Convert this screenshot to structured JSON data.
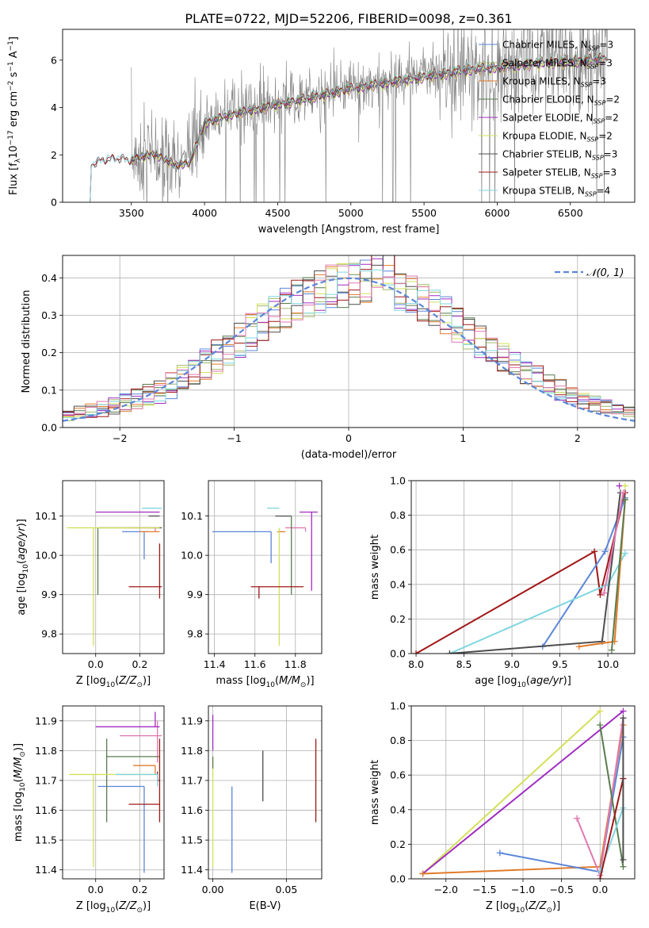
{
  "page_title": "PLATE=0722, MJD=52206, FIBERID=0098, z=0.361",
  "colors": {
    "chabrier_miles": "#5b86d8",
    "salpeter_miles": "#a2b86c",
    "kroupa_miles": "#e07b2a",
    "chabrier_elodie": "#5a7c4e",
    "salpeter_elodie": "#a02cc0",
    "kroupa_elodie": "#d4e05a",
    "chabrier_stelib": "#4d4d4d",
    "salpeter_stelib": "#a01818",
    "kroupa_stelib": "#7fd6e0",
    "pink": "#e079b0",
    "data": "#808080",
    "grid": "#b0b0b0",
    "normal": "#5b86d8"
  },
  "legend_spectrum": [
    {
      "label": "Chabrier MILES, N_SSP=3",
      "color": "#5b86d8"
    },
    {
      "label": "Salpeter MILES, N_SSP=3",
      "color": "#a2b86c"
    },
    {
      "label": "Kroupa MILES, N_SSP=3",
      "color": "#e07b2a"
    },
    {
      "label": "Chabrier ELODIE, N_SSP=2",
      "color": "#5a7c4e"
    },
    {
      "label": "Salpeter ELODIE, N_SSP=2",
      "color": "#a02cc0"
    },
    {
      "label": "Kroupa ELODIE, N_SSP=2",
      "color": "#d4e05a"
    },
    {
      "label": "Chabrier STELIB, N_SSP=3",
      "color": "#4d4d4d"
    },
    {
      "label": "Salpeter STELIB, N_SSP=3",
      "color": "#a01818"
    },
    {
      "label": "Kroupa STELIB, N_SSP=4",
      "color": "#7fd6e0"
    }
  ],
  "chart_data": [
    {
      "type": "line",
      "id": "spectrum",
      "xlabel": "wavelength [Angstrom, rest frame]",
      "ylabel": "Flux [f_λ10^-17 erg cm^-2 s^-1 A^-1]",
      "xlim": [
        3030,
        6940
      ],
      "ylim": [
        0,
        7.3
      ],
      "xticks": [
        3500,
        4000,
        4500,
        5000,
        5500,
        6000,
        6500
      ],
      "yticks": [
        0,
        2,
        4,
        6
      ],
      "continuum": [
        [
          3210,
          1.6
        ],
        [
          3300,
          1.8
        ],
        [
          3400,
          1.9
        ],
        [
          3500,
          1.8
        ],
        [
          3650,
          2.1
        ],
        [
          3800,
          1.6
        ],
        [
          3900,
          1.7
        ],
        [
          4000,
          3.4
        ],
        [
          4200,
          3.8
        ],
        [
          4500,
          4.2
        ],
        [
          4800,
          4.6
        ],
        [
          5000,
          4.9
        ],
        [
          5200,
          5.1
        ],
        [
          5500,
          5.4
        ],
        [
          5800,
          5.7
        ],
        [
          6000,
          5.8
        ],
        [
          6300,
          6.0
        ],
        [
          6600,
          6.1
        ],
        [
          6750,
          6.2
        ]
      ],
      "legend_position": "upper right"
    },
    {
      "type": "bar",
      "id": "residuals",
      "xlabel": "(data-model)/error",
      "ylabel": "Normed distribution",
      "xlim": [
        -2.5,
        2.5
      ],
      "ylim": [
        0,
        0.46
      ],
      "xticks": [
        -2,
        -1,
        0,
        1,
        2
      ],
      "yticks": [
        0.0,
        0.1,
        0.2,
        0.3,
        0.4
      ],
      "bin_width": 0.1,
      "legend": "𝒩(0, 1)",
      "legend_position": "upper right",
      "reference": "normal pdf mean 0 sigma 1 dashed"
    },
    {
      "type": "scatter",
      "id": "age_vs_Z",
      "xlabel": "Z [log10(Z/Z⊙)]",
      "ylabel": "age [log10(age/yr)]",
      "xlim": [
        -0.15,
        0.31
      ],
      "ylim": [
        9.75,
        10.19
      ],
      "xticks": [
        0.0,
        0.2
      ],
      "yticks": [
        9.8,
        9.9,
        10.0,
        10.1
      ],
      "points": [
        {
          "x": 0.27,
          "y": 10.07,
          "xerr": [
            0.12,
            0.03
          ],
          "yerr": [
            0.01,
            0.0
          ],
          "c": "#e079b0"
        },
        {
          "x": 0.22,
          "y": 10.06,
          "xerr": [
            0.1,
            0.02
          ],
          "yerr": [
            0.07,
            0.0
          ],
          "c": "#5b86d8"
        },
        {
          "x": 0.26,
          "y": 10.06,
          "xerr": [
            0.06,
            0.03
          ],
          "yerr": [
            0.0,
            0.0
          ],
          "c": "#e07b2a"
        },
        {
          "x": 0.01,
          "y": 10.07,
          "xerr": [
            0.0,
            0.29
          ],
          "yerr": [
            0.17,
            0.0
          ],
          "c": "#5a7c4e"
        },
        {
          "x": 0.27,
          "y": 10.11,
          "xerr": [
            0.27,
            0.02
          ],
          "yerr": [
            0.0,
            0.0
          ],
          "c": "#a02cc0"
        },
        {
          "x": -0.01,
          "y": 10.07,
          "xerr": [
            0.12,
            0.3
          ],
          "yerr": [
            0.3,
            0.0
          ],
          "c": "#d4e05a"
        },
        {
          "x": 0.28,
          "y": 10.1,
          "xerr": [
            0.04,
            0.01
          ],
          "yerr": [
            0.0,
            0.0
          ],
          "c": "#4d4d4d"
        },
        {
          "x": 0.29,
          "y": 9.92,
          "xerr": [
            0.14,
            0.01
          ],
          "yerr": [
            0.03,
            0.11
          ],
          "c": "#a01818"
        },
        {
          "x": 0.21,
          "y": 10.12,
          "xerr": [
            0.0,
            0.09
          ],
          "yerr": [
            0.0,
            0.0
          ],
          "c": "#7fd6e0"
        }
      ]
    },
    {
      "type": "scatter",
      "id": "age_vs_mass",
      "xlabel": "mass [log10(M/M⊙)]",
      "ylabel": "",
      "xlim": [
        11.37,
        11.93
      ],
      "ylim": [
        9.75,
        10.19
      ],
      "xticks": [
        11.4,
        11.6,
        11.8
      ],
      "yticks": [
        9.8,
        9.9,
        10.0,
        10.1
      ],
      "points": [
        {
          "x": 11.85,
          "y": 10.07,
          "xerr": [
            0.1,
            0.0
          ],
          "yerr": [
            0.01,
            0.0
          ],
          "c": "#e079b0"
        },
        {
          "x": 11.68,
          "y": 10.06,
          "xerr": [
            0.29,
            0.0
          ],
          "yerr": [
            0.08,
            0.0
          ],
          "c": "#5b86d8"
        },
        {
          "x": 11.75,
          "y": 10.06,
          "xerr": [
            0.04,
            0.0
          ],
          "yerr": [
            0.0,
            0.0
          ],
          "c": "#e07b2a"
        },
        {
          "x": 11.78,
          "y": 10.1,
          "xerr": [
            0.0,
            0.0
          ],
          "yerr": [
            0.2,
            0.0
          ],
          "c": "#5a7c4e"
        },
        {
          "x": 11.88,
          "y": 10.11,
          "xerr": [
            0.06,
            0.03
          ],
          "yerr": [
            0.2,
            0.0
          ],
          "c": "#a02cc0"
        },
        {
          "x": 11.72,
          "y": 10.07,
          "xerr": [
            0.0,
            0.0
          ],
          "yerr": [
            0.3,
            0.0
          ],
          "c": "#d4e05a"
        },
        {
          "x": 11.7,
          "y": 10.1,
          "xerr": [
            0.0,
            0.08
          ],
          "yerr": [
            0.0,
            0.0
          ],
          "c": "#4d4d4d"
        },
        {
          "x": 11.62,
          "y": 9.92,
          "xerr": [
            0.04,
            0.22
          ],
          "yerr": [
            0.03,
            0.0
          ],
          "c": "#a01818"
        },
        {
          "x": 11.72,
          "y": 10.12,
          "xerr": [
            0.06,
            0.0
          ],
          "yerr": [
            0.0,
            0.0
          ],
          "c": "#7fd6e0"
        }
      ]
    },
    {
      "type": "line",
      "id": "massweight_vs_age",
      "xlabel": "age [log10(age/yr)]",
      "ylabel": "mass weight",
      "xlim": [
        7.95,
        10.28
      ],
      "ylim": [
        0,
        1.0
      ],
      "xticks": [
        8.0,
        8.5,
        9.0,
        9.5,
        10.0
      ],
      "yticks": [
        0.0,
        0.2,
        0.4,
        0.6,
        0.8,
        1.0
      ],
      "series": [
        {
          "c": "#a01818",
          "points": [
            [
              8.0,
              0.0
            ],
            [
              9.86,
              0.59
            ],
            [
              9.92,
              0.34
            ],
            [
              10.18,
              0.93
            ]
          ]
        },
        {
          "c": "#5b86d8",
          "points": [
            [
              9.32,
              0.04
            ],
            [
              9.97,
              0.59
            ],
            [
              10.18,
              0.9
            ]
          ]
        },
        {
          "c": "#7fd6e0",
          "points": [
            [
              8.35,
              0.0
            ],
            [
              10.0,
              0.4
            ],
            [
              10.18,
              0.58
            ]
          ]
        },
        {
          "c": "#4d4d4d",
          "points": [
            [
              8.35,
              0.0
            ],
            [
              9.94,
              0.07
            ],
            [
              10.13,
              0.93
            ]
          ]
        },
        {
          "c": "#e07b2a",
          "points": [
            [
              9.7,
              0.04
            ],
            [
              10.07,
              0.07
            ],
            [
              10.18,
              0.89
            ]
          ]
        },
        {
          "c": "#e079b0",
          "points": [
            [
              9.96,
              0.35
            ],
            [
              10.16,
              0.93
            ]
          ]
        },
        {
          "c": "#a02cc0",
          "points": [
            [
              10.12,
              0.97
            ]
          ]
        },
        {
          "c": "#d4e05a",
          "points": [
            [
              10.18,
              0.97
            ]
          ]
        },
        {
          "c": "#5a7c4e",
          "points": [
            [
              10.04,
              0.02
            ],
            [
              10.18,
              0.89
            ]
          ]
        }
      ]
    },
    {
      "type": "scatter",
      "id": "mass_vs_Z",
      "xlabel": "Z [log10(Z/Z⊙)]",
      "ylabel": "mass [log10(M/M⊙)]",
      "xlim": [
        -0.15,
        0.31
      ],
      "ylim": [
        11.37,
        11.95
      ],
      "xticks": [
        0.0,
        0.2
      ],
      "yticks": [
        11.4,
        11.5,
        11.6,
        11.7,
        11.8,
        11.9
      ],
      "points": [
        {
          "x": 0.28,
          "y": 11.85,
          "xerr": [
            0.17,
            0.02
          ],
          "yerr": [
            0.09,
            0.05
          ],
          "c": "#e079b0"
        },
        {
          "x": 0.22,
          "y": 11.68,
          "xerr": [
            0.21,
            0.0
          ],
          "yerr": [
            0.29,
            0.0
          ],
          "c": "#5b86d8"
        },
        {
          "x": 0.27,
          "y": 11.75,
          "xerr": [
            0.1,
            0.0
          ],
          "yerr": [
            0.03,
            0.0
          ],
          "c": "#e07b2a"
        },
        {
          "x": 0.05,
          "y": 11.78,
          "xerr": [
            0.0,
            0.24
          ],
          "yerr": [
            0.22,
            0.06
          ],
          "c": "#5a7c4e"
        },
        {
          "x": 0.27,
          "y": 11.88,
          "xerr": [
            0.27,
            0.02
          ],
          "yerr": [
            0.0,
            0.05
          ],
          "c": "#a02cc0"
        },
        {
          "x": -0.01,
          "y": 11.72,
          "xerr": [
            0.11,
            0.27
          ],
          "yerr": [
            0.31,
            0.0
          ],
          "c": "#d4e05a"
        },
        {
          "x": 0.28,
          "y": 11.7,
          "xerr": [
            0.0,
            0.01
          ],
          "yerr": [
            0.0,
            0.03
          ],
          "c": "#4d4d4d"
        },
        {
          "x": 0.29,
          "y": 11.62,
          "xerr": [
            0.14,
            0.0
          ],
          "yerr": [
            0.06,
            0.22
          ],
          "c": "#a01818"
        },
        {
          "x": 0.28,
          "y": 11.72,
          "xerr": [
            0.19,
            0.0
          ],
          "yerr": [
            0.04,
            0.0
          ],
          "c": "#7fd6e0"
        }
      ]
    },
    {
      "type": "scatter",
      "id": "mass_vs_ebv",
      "xlabel": "E(B-V)",
      "ylabel": "",
      "xlim": [
        -0.003,
        0.074
      ],
      "ylim": [
        11.37,
        11.95
      ],
      "xticks": [
        0.0,
        0.05
      ],
      "yticks": [
        11.4,
        11.5,
        11.6,
        11.7,
        11.8,
        11.9
      ],
      "points": [
        {
          "x": 0.0,
          "y": 11.88,
          "xerr": [
            0,
            0
          ],
          "yerr": [
            0.08,
            0.04
          ],
          "c": "#a02cc0"
        },
        {
          "x": 0.0,
          "y": 11.72,
          "xerr": [
            0,
            0
          ],
          "yerr": [
            0.31,
            0.06
          ],
          "c": "#d4e05a"
        },
        {
          "x": 0.0,
          "y": 11.78,
          "xerr": [
            0,
            0
          ],
          "yerr": [
            0.04,
            0.0
          ],
          "c": "#5a7c4e"
        },
        {
          "x": 0.013,
          "y": 11.68,
          "xerr": [
            0,
            0
          ],
          "yerr": [
            0.29,
            0.0
          ],
          "c": "#5b86d8"
        },
        {
          "x": 0.034,
          "y": 11.7,
          "xerr": [
            0,
            0
          ],
          "yerr": [
            0.07,
            0.1
          ],
          "c": "#4d4d4d"
        },
        {
          "x": 0.07,
          "y": 11.62,
          "xerr": [
            0,
            0
          ],
          "yerr": [
            0.06,
            0.22
          ],
          "c": "#a01818"
        }
      ]
    },
    {
      "type": "line",
      "id": "massweight_vs_Z",
      "xlabel": "Z [log10(Z/Z⊙)]",
      "ylabel": "mass weight",
      "xlim": [
        -2.45,
        0.45
      ],
      "ylim": [
        0,
        1.0
      ],
      "xticks": [
        -2.0,
        -1.5,
        -1.0,
        -0.5,
        0.0
      ],
      "yticks": [
        0.0,
        0.2,
        0.4,
        0.6,
        0.8,
        1.0
      ],
      "series": [
        {
          "c": "#d4e05a",
          "points": [
            [
              -2.3,
              0.03
            ],
            [
              0.0,
              0.97
            ]
          ]
        },
        {
          "c": "#a02cc0",
          "points": [
            [
              -2.3,
              0.03
            ],
            [
              0.3,
              0.97
            ]
          ]
        },
        {
          "c": "#e07b2a",
          "points": [
            [
              -2.3,
              0.03
            ],
            [
              0.0,
              0.07
            ],
            [
              0.3,
              0.89
            ]
          ]
        },
        {
          "c": "#5b86d8",
          "points": [
            [
              -1.3,
              0.15
            ],
            [
              0.0,
              0.04
            ],
            [
              0.3,
              0.82
            ]
          ]
        },
        {
          "c": "#e079b0",
          "points": [
            [
              -0.3,
              0.35
            ],
            [
              0.0,
              0.02
            ],
            [
              0.3,
              0.93
            ]
          ]
        },
        {
          "c": "#5a7c4e",
          "points": [
            [
              0.0,
              0.89
            ],
            [
              0.3,
              0.07
            ]
          ]
        },
        {
          "c": "#7fd6e0",
          "points": [
            [
              0.0,
              0.04
            ],
            [
              0.3,
              0.41
            ]
          ]
        },
        {
          "c": "#a01818",
          "points": [
            [
              0.0,
              0.0
            ],
            [
              0.3,
              0.58
            ]
          ]
        },
        {
          "c": "#4d4d4d",
          "points": [
            [
              0.3,
              0.11
            ],
            [
              0.3,
              0.93
            ]
          ]
        }
      ]
    }
  ]
}
